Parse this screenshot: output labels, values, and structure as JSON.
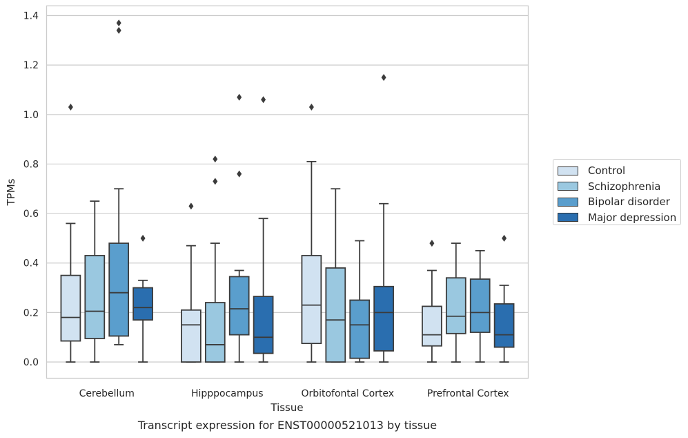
{
  "chart_data": {
    "type": "boxplot",
    "title": "Transcript expression for ENST00000521013 by tissue",
    "xlabel": "Tissue",
    "ylabel": "TPMs",
    "ylim": [
      -0.065,
      1.44
    ],
    "yticks": [
      0.0,
      0.2,
      0.4,
      0.6,
      0.8,
      1.0,
      1.2,
      1.4
    ],
    "ytick_labels": [
      "0.0",
      "0.2",
      "0.4",
      "0.6",
      "0.8",
      "1.0",
      "1.2",
      "1.4"
    ],
    "grid": true,
    "legend_position": "right",
    "categories": [
      "Cerebellum",
      "Hipppocampus",
      "Orbitofontal Cortex",
      "Prefrontal Cortex"
    ],
    "series": [
      {
        "name": "Control",
        "color": "#d1e2f1",
        "boxes": [
          {
            "whislo": 0.0,
            "q1": 0.085,
            "med": 0.18,
            "q3": 0.35,
            "whishi": 0.56,
            "fliers": [
              1.03
            ]
          },
          {
            "whislo": 0.0,
            "q1": 0.0,
            "med": 0.15,
            "q3": 0.21,
            "whishi": 0.47,
            "fliers": [
              0.63
            ]
          },
          {
            "whislo": 0.0,
            "q1": 0.075,
            "med": 0.23,
            "q3": 0.43,
            "whishi": 0.81,
            "fliers": [
              1.03
            ]
          },
          {
            "whislo": 0.0,
            "q1": 0.065,
            "med": 0.11,
            "q3": 0.225,
            "whishi": 0.37,
            "fliers": [
              0.48
            ]
          }
        ]
      },
      {
        "name": "Schizophrenia",
        "color": "#9ac8e0",
        "boxes": [
          {
            "whislo": 0.0,
            "q1": 0.095,
            "med": 0.205,
            "q3": 0.43,
            "whishi": 0.65,
            "fliers": []
          },
          {
            "whislo": 0.0,
            "q1": 0.0,
            "med": 0.07,
            "q3": 0.24,
            "whishi": 0.48,
            "fliers": [
              0.73,
              0.82
            ]
          },
          {
            "whislo": 0.0,
            "q1": 0.0,
            "med": 0.17,
            "q3": 0.38,
            "whishi": 0.7,
            "fliers": []
          },
          {
            "whislo": 0.0,
            "q1": 0.115,
            "med": 0.185,
            "q3": 0.34,
            "whishi": 0.48,
            "fliers": []
          }
        ]
      },
      {
        "name": "Bipolar disorder",
        "color": "#5a9ecd",
        "boxes": [
          {
            "whislo": 0.07,
            "q1": 0.105,
            "med": 0.28,
            "q3": 0.48,
            "whishi": 0.7,
            "fliers": [
              1.34,
              1.37
            ]
          },
          {
            "whislo": 0.0,
            "q1": 0.11,
            "med": 0.215,
            "q3": 0.345,
            "whishi": 0.37,
            "fliers": [
              0.76,
              1.07
            ]
          },
          {
            "whislo": 0.0,
            "q1": 0.015,
            "med": 0.15,
            "q3": 0.25,
            "whishi": 0.49,
            "fliers": []
          },
          {
            "whislo": 0.0,
            "q1": 0.12,
            "med": 0.2,
            "q3": 0.335,
            "whishi": 0.45,
            "fliers": []
          }
        ]
      },
      {
        "name": "Major depression",
        "color": "#2a6eaf",
        "boxes": [
          {
            "whislo": 0.0,
            "q1": 0.17,
            "med": 0.22,
            "q3": 0.3,
            "whishi": 0.33,
            "fliers": [
              0.5
            ]
          },
          {
            "whislo": 0.0,
            "q1": 0.035,
            "med": 0.1,
            "q3": 0.265,
            "whishi": 0.58,
            "fliers": [
              1.06
            ]
          },
          {
            "whislo": 0.0,
            "q1": 0.045,
            "med": 0.2,
            "q3": 0.305,
            "whishi": 0.64,
            "fliers": [
              1.15
            ]
          },
          {
            "whislo": 0.0,
            "q1": 0.06,
            "med": 0.11,
            "q3": 0.235,
            "whishi": 0.31,
            "fliers": [
              0.5
            ]
          }
        ]
      }
    ]
  }
}
